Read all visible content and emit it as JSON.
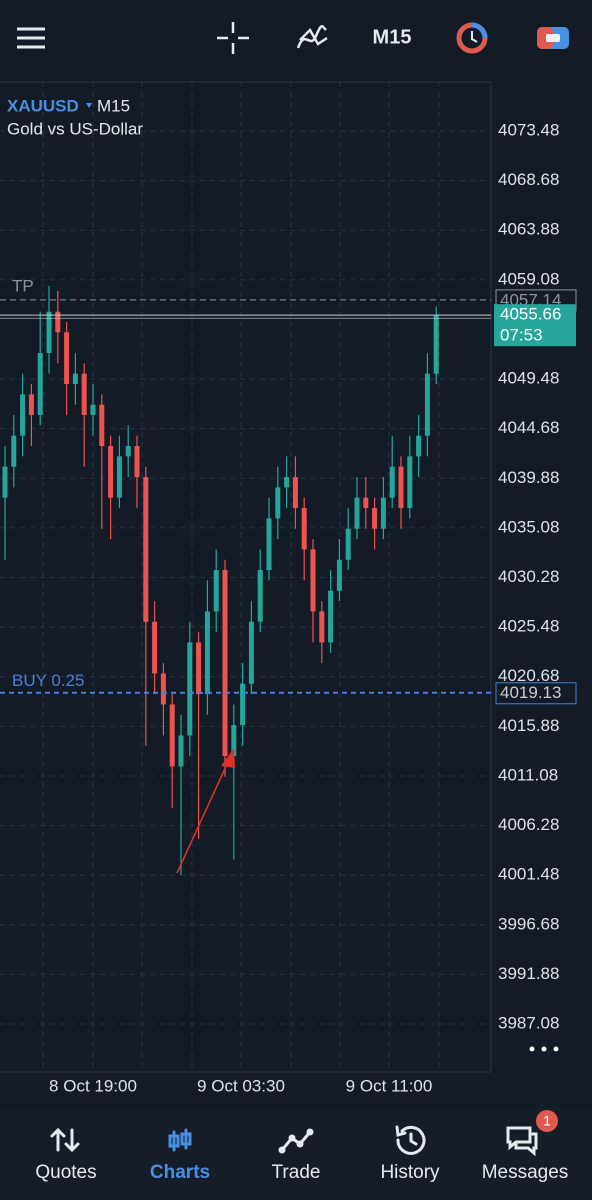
{
  "top_bar": {
    "timeframe": "M15"
  },
  "chart_data": {
    "type": "candlestick",
    "symbol": "XAUUSD",
    "timeframe": "M15",
    "description": "Gold vs US-Dollar",
    "ylim": [
      3982.44,
      4078.22
    ],
    "yticks": [
      4073.48,
      4068.68,
      4063.88,
      4059.08,
      4049.48,
      4044.68,
      4039.88,
      4035.08,
      4030.28,
      4025.48,
      4020.68,
      4015.88,
      4011.08,
      4006.28,
      4001.48,
      3996.68,
      3991.88,
      3987.08
    ],
    "x_labels": [
      "8 Oct 19:00",
      "9 Oct 03:30",
      "9 Oct 11:00"
    ],
    "up_color": "#26a69a",
    "down_color": "#ef5350",
    "candles": [
      [
        4038,
        4043,
        4032,
        4041
      ],
      [
        4041,
        4046,
        4039,
        4044
      ],
      [
        4044,
        4050,
        4042,
        4048
      ],
      [
        4048,
        4049,
        4043,
        4046
      ],
      [
        4046,
        4056,
        4045,
        4052
      ],
      [
        4052,
        4058.5,
        4050,
        4056
      ],
      [
        4056,
        4058,
        4051,
        4054
      ],
      [
        4054,
        4055,
        4046,
        4049
      ],
      [
        4049,
        4052,
        4047,
        4050
      ],
      [
        4050,
        4051,
        4041,
        4046
      ],
      [
        4046,
        4049,
        4044,
        4047
      ],
      [
        4047,
        4048,
        4035,
        4043
      ],
      [
        4043,
        4044,
        4034,
        4038
      ],
      [
        4038,
        4044,
        4037,
        4042
      ],
      [
        4042,
        4045,
        4040,
        4043
      ],
      [
        4043,
        4044,
        4037,
        4040
      ],
      [
        4040,
        4041,
        4014,
        4026
      ],
      [
        4026,
        4028,
        4019,
        4021
      ],
      [
        4021,
        4022,
        4015,
        4018
      ],
      [
        4018,
        4019,
        4008,
        4012
      ],
      [
        4012,
        4017,
        4001.5,
        4015
      ],
      [
        4015,
        4026,
        4013,
        4024
      ],
      [
        4024,
        4025,
        4005,
        4019
      ],
      [
        4019,
        4030,
        4017,
        4027
      ],
      [
        4027,
        4033,
        4025,
        4031
      ],
      [
        4031,
        4032,
        4011,
        4013
      ],
      [
        4013,
        4018,
        4003,
        4016
      ],
      [
        4016,
        4022,
        4014,
        4020
      ],
      [
        4020,
        4028,
        4019,
        4026
      ],
      [
        4026,
        4033,
        4025,
        4031
      ],
      [
        4031,
        4038,
        4030,
        4036
      ],
      [
        4036,
        4041,
        4034,
        4039
      ],
      [
        4039,
        4042,
        4037,
        4040
      ],
      [
        4040,
        4042,
        4035,
        4037
      ],
      [
        4037,
        4038,
        4030,
        4033
      ],
      [
        4033,
        4034,
        4024,
        4027
      ],
      [
        4027,
        4028,
        4022,
        4024
      ],
      [
        4024,
        4031,
        4023,
        4029
      ],
      [
        4029,
        4034,
        4028,
        4032
      ],
      [
        4032,
        4037,
        4031,
        4035
      ],
      [
        4035,
        4040,
        4034,
        4038
      ],
      [
        4038,
        4040,
        4035,
        4037
      ],
      [
        4037,
        4038,
        4033,
        4035
      ],
      [
        4035,
        4040,
        4034,
        4038
      ],
      [
        4038,
        4044,
        4037,
        4041
      ],
      [
        4041,
        4042,
        4035,
        4037
      ],
      [
        4037,
        4044,
        4036,
        4042
      ],
      [
        4042,
        4046,
        4040,
        4044
      ],
      [
        4044,
        4052,
        4042,
        4050
      ],
      [
        4050,
        4056.5,
        4049,
        4055.66
      ]
    ],
    "tp_line": {
      "label": "TP",
      "value": 4057.14
    },
    "current_price": {
      "value": 4055.66,
      "timer": "07:53"
    },
    "buy_line": {
      "label": "BUY 0.25",
      "value": 4019.13
    }
  },
  "tabs": [
    {
      "label": "Quotes"
    },
    {
      "label": "Charts"
    },
    {
      "label": "Trade"
    },
    {
      "label": "History"
    },
    {
      "label": "Messages",
      "badge": 1
    }
  ]
}
